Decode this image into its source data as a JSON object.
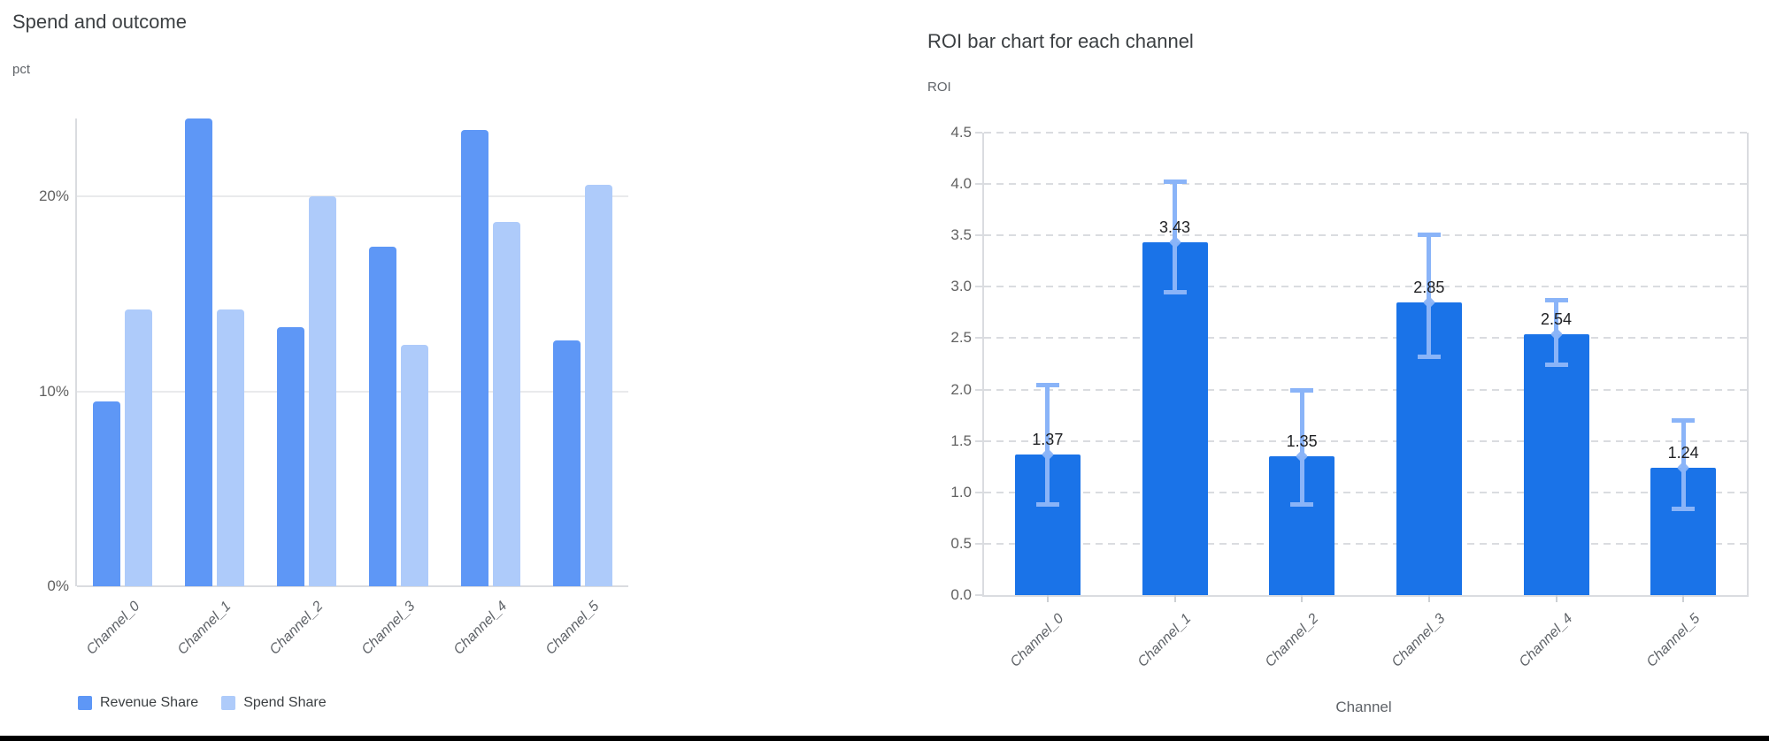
{
  "page": {
    "background_color": "#ffffff",
    "bottom_rule_color": "#000000"
  },
  "chart_data": [
    {
      "id": "spend-and-outcome",
      "type": "bar",
      "title": "Spend and outcome",
      "ylabel_unit": "pct",
      "xlabel": "",
      "categories": [
        "Channel_0",
        "Channel_1",
        "Channel_2",
        "Channel_3",
        "Channel_4",
        "Channel_5"
      ],
      "series": [
        {
          "name": "Revenue Share",
          "color": "#5e97f6",
          "values": [
            9.5,
            24.0,
            13.3,
            17.4,
            23.4,
            12.6
          ]
        },
        {
          "name": "Spend Share",
          "color": "#aecbfa",
          "values": [
            14.2,
            14.2,
            20.0,
            12.4,
            18.7,
            20.6
          ]
        }
      ],
      "value_format": "percent",
      "ylim": [
        0,
        24
      ],
      "y_ticks": [
        {
          "value": 0,
          "label": "0%"
        },
        {
          "value": 10,
          "label": "10%"
        },
        {
          "value": 20,
          "label": "20%"
        }
      ],
      "grid": "horizontal-solid",
      "legend_position": "bottom-left"
    },
    {
      "id": "roi-by-channel",
      "type": "bar",
      "title": "ROI bar chart for each channel",
      "ylabel_unit": "ROI",
      "xlabel": "Channel",
      "categories": [
        "Channel_0",
        "Channel_1",
        "Channel_2",
        "Channel_3",
        "Channel_4",
        "Channel_5"
      ],
      "series": [
        {
          "name": "ROI",
          "color": "#1a73e8",
          "values": [
            1.37,
            3.43,
            1.35,
            2.85,
            2.54,
            1.24
          ]
        }
      ],
      "bar_labels": [
        "1.37",
        "3.43",
        "1.35",
        "2.85",
        "2.54",
        "1.24"
      ],
      "error_bars": [
        {
          "lo": 0.88,
          "hi": 2.04
        },
        {
          "lo": 2.95,
          "hi": 4.02
        },
        {
          "lo": 0.88,
          "hi": 1.99
        },
        {
          "lo": 2.32,
          "hi": 3.51
        },
        {
          "lo": 2.24,
          "hi": 2.87
        },
        {
          "lo": 0.84,
          "hi": 1.7
        }
      ],
      "error_bar_color": "#8ab4f8",
      "ylim": [
        0,
        4.5
      ],
      "y_ticks": [
        {
          "value": 0.0,
          "label": "0.0"
        },
        {
          "value": 0.5,
          "label": "0.5"
        },
        {
          "value": 1.0,
          "label": "1.0"
        },
        {
          "value": 1.5,
          "label": "1.5"
        },
        {
          "value": 2.0,
          "label": "2.0"
        },
        {
          "value": 2.5,
          "label": "2.5"
        },
        {
          "value": 3.0,
          "label": "3.0"
        },
        {
          "value": 3.5,
          "label": "3.5"
        },
        {
          "value": 4.0,
          "label": "4.0"
        },
        {
          "value": 4.5,
          "label": "4.5"
        }
      ],
      "grid": "horizontal-dashed",
      "legend_position": "none"
    }
  ]
}
